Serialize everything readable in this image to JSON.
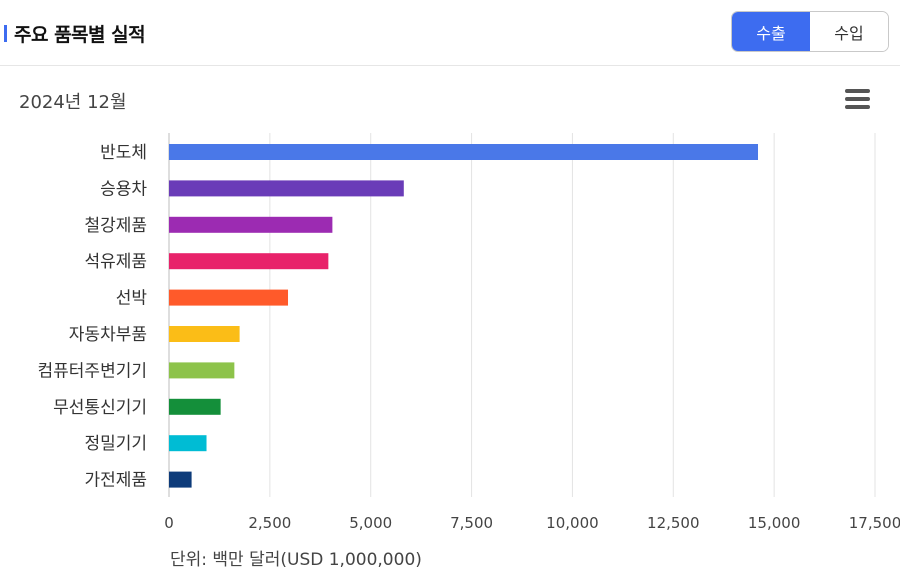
{
  "header": {
    "title": "주요 품목별 실적",
    "toggle": {
      "export_label": "수출",
      "import_label": "수입"
    }
  },
  "period": "2024년 12월",
  "unit_note": "단위: 백만 달러(USD 1,000,000)",
  "chart_data": {
    "type": "bar",
    "orientation": "horizontal",
    "categories": [
      "반도체",
      "승용차",
      "철강제품",
      "석유제품",
      "선박",
      "자동차부품",
      "컴퓨터주변기기",
      "무선통신기기",
      "정밀기기",
      "가전제품"
    ],
    "values": [
      14600,
      5820,
      4050,
      3950,
      2950,
      1750,
      1620,
      1280,
      930,
      560
    ],
    "colors": [
      "#4a78e8",
      "#6a3cb8",
      "#9c2bb2",
      "#e8226a",
      "#ff5a2a",
      "#fbbd17",
      "#8dc34a",
      "#148f3a",
      "#00bcd4",
      "#0d3b7a"
    ],
    "x_ticks": [
      "0",
      "2,500",
      "5,000",
      "7,500",
      "10,000",
      "12,500",
      "15,000",
      "17,500"
    ],
    "xlim": [
      0,
      17500
    ],
    "grid": true
  }
}
